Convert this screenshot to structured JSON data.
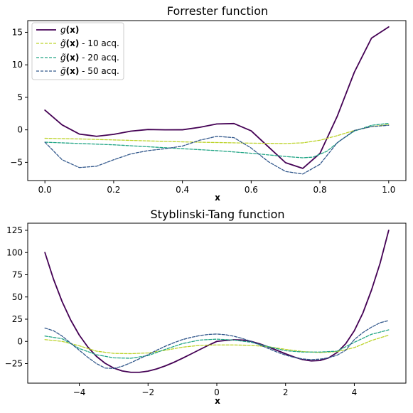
{
  "chart_data": [
    {
      "type": "line",
      "title": "Forrester function",
      "xlabel": "x",
      "ylabel": "",
      "xlim": [
        -0.05,
        1.05
      ],
      "ylim": [
        -7.8,
        16.8
      ],
      "xticks": [
        0.0,
        0.2,
        0.4,
        0.6,
        0.8,
        1.0
      ],
      "xtick_labels": [
        "0.0",
        "0.2",
        "0.4",
        "0.6",
        "0.8",
        "1.0"
      ],
      "yticks": [
        -5,
        0,
        5,
        10,
        15
      ],
      "ytick_labels": [
        "−5",
        "0",
        "5",
        "10",
        "15"
      ],
      "legend": {
        "location": "upper-left",
        "entries": [
          {
            "label_main": "g",
            "label_arg": "(x)",
            "label_suffix": ""
          },
          {
            "label_main": "g̃",
            "label_arg": "(x)",
            "label_suffix": " - 10 acq."
          },
          {
            "label_main": "g̃",
            "label_arg": "(x)",
            "label_suffix": " - 20 acq."
          },
          {
            "label_main": "g̃",
            "label_arg": "(x)",
            "label_suffix": " - 50 acq."
          }
        ]
      },
      "series": [
        {
          "color": "#440154",
          "dashed": false,
          "x": [
            0.0,
            0.05,
            0.1,
            0.15,
            0.2,
            0.25,
            0.3,
            0.35,
            0.4,
            0.45,
            0.5,
            0.55,
            0.6,
            0.65,
            0.7,
            0.75,
            0.8,
            0.85,
            0.9,
            0.95,
            1.0
          ],
          "y": [
            3.03,
            0.76,
            -0.65,
            -0.99,
            -0.69,
            -0.2,
            0.05,
            0.0,
            0.01,
            0.39,
            0.91,
            0.97,
            -0.15,
            -2.61,
            -5.05,
            -5.93,
            -3.63,
            2.05,
            8.86,
            14.11,
            15.83
          ]
        },
        {
          "color": "#bcd32a",
          "dashed": true,
          "x": [
            0.0,
            0.1,
            0.2,
            0.3,
            0.4,
            0.5,
            0.6,
            0.7,
            0.75,
            0.8,
            0.85,
            0.9,
            0.95,
            1.0
          ],
          "y": [
            -1.3,
            -1.4,
            -1.55,
            -1.7,
            -1.85,
            -1.95,
            -2.05,
            -2.1,
            -2.0,
            -1.6,
            -0.9,
            -0.1,
            0.5,
            0.8
          ]
        },
        {
          "color": "#21a585",
          "dashed": true,
          "x": [
            0.0,
            0.1,
            0.2,
            0.3,
            0.4,
            0.5,
            0.6,
            0.7,
            0.75,
            0.78,
            0.82,
            0.86,
            0.9,
            0.95,
            1.0
          ],
          "y": [
            -1.9,
            -2.1,
            -2.3,
            -2.6,
            -2.9,
            -3.2,
            -3.6,
            -4.1,
            -4.3,
            -4.2,
            -3.3,
            -1.6,
            -0.2,
            0.7,
            1.0
          ]
        },
        {
          "color": "#31578b",
          "dashed": true,
          "x": [
            0.0,
            0.05,
            0.1,
            0.15,
            0.2,
            0.25,
            0.3,
            0.35,
            0.4,
            0.45,
            0.5,
            0.55,
            0.6,
            0.65,
            0.7,
            0.75,
            0.8,
            0.85,
            0.9,
            0.95,
            1.0
          ],
          "y": [
            -1.9,
            -4.6,
            -5.8,
            -5.6,
            -4.6,
            -3.7,
            -3.2,
            -2.9,
            -2.5,
            -1.6,
            -1.0,
            -1.2,
            -2.8,
            -4.9,
            -6.4,
            -6.8,
            -5.3,
            -2.0,
            -0.1,
            0.5,
            0.7
          ]
        }
      ]
    },
    {
      "type": "line",
      "title": "Styblinski-Tang function",
      "xlabel": "x",
      "ylabel": "",
      "xlim": [
        -5.5,
        5.5
      ],
      "ylim": [
        -47,
        133
      ],
      "xticks": [
        -4,
        -2,
        0,
        2,
        4
      ],
      "xtick_labels": [
        "−4",
        "−2",
        "0",
        "2",
        "4"
      ],
      "yticks": [
        -25,
        0,
        25,
        50,
        75,
        100,
        125
      ],
      "ytick_labels": [
        "−25",
        "0",
        "25",
        "50",
        "75",
        "100",
        "125"
      ],
      "legend": null,
      "series": [
        {
          "color": "#440154",
          "dashed": false,
          "x": [
            -5.0,
            -4.75,
            -4.5,
            -4.25,
            -4.0,
            -3.75,
            -3.5,
            -3.25,
            -3.0,
            -2.75,
            -2.5,
            -2.25,
            -2.0,
            -1.75,
            -1.5,
            -1.25,
            -1.0,
            -0.75,
            -0.5,
            -0.25,
            0.0,
            0.25,
            0.5,
            0.75,
            1.0,
            1.25,
            1.5,
            1.75,
            2.0,
            2.25,
            2.5,
            2.75,
            3.0,
            3.25,
            3.5,
            3.75,
            4.0,
            4.25,
            4.5,
            4.75,
            5.0
          ],
          "y": [
            100.0,
            70.0,
            44.8,
            24.0,
            7.0,
            -6.4,
            -16.9,
            -24.6,
            -30.0,
            -33.3,
            -34.8,
            -34.8,
            -33.5,
            -31.0,
            -27.6,
            -23.6,
            -19.0,
            -14.2,
            -9.3,
            -4.5,
            0.0,
            1.0,
            1.8,
            1.5,
            0.0,
            -2.8,
            -6.3,
            -10.1,
            -14.0,
            -17.6,
            -20.5,
            -22.0,
            -21.5,
            -18.6,
            -12.5,
            -2.6,
            12.0,
            32.0,
            57.8,
            88.0,
            125.0
          ]
        },
        {
          "color": "#bcd32a",
          "dashed": true,
          "x": [
            -5.0,
            -4.5,
            -4.0,
            -3.5,
            -3.0,
            -2.5,
            -2.0,
            -1.5,
            -1.0,
            -0.5,
            0.0,
            0.5,
            1.0,
            1.5,
            2.0,
            2.5,
            3.0,
            3.5,
            4.0,
            4.5,
            5.0
          ],
          "y": [
            2.0,
            0.0,
            -5.0,
            -11.0,
            -13.5,
            -13.8,
            -13.0,
            -10.0,
            -6.5,
            -4.5,
            -4.0,
            -4.0,
            -4.5,
            -6.0,
            -9.0,
            -11.5,
            -12.5,
            -11.5,
            -7.0,
            1.0,
            7.0
          ]
        },
        {
          "color": "#21a585",
          "dashed": true,
          "x": [
            -5.0,
            -4.5,
            -4.0,
            -3.5,
            -3.0,
            -2.5,
            -2.0,
            -1.5,
            -1.0,
            -0.5,
            0.0,
            0.5,
            1.0,
            1.5,
            2.0,
            2.5,
            3.0,
            3.5,
            4.0,
            4.5,
            5.0
          ],
          "y": [
            6.0,
            3.0,
            -8.0,
            -15.0,
            -18.5,
            -19.0,
            -16.0,
            -9.0,
            -2.5,
            1.5,
            2.5,
            1.5,
            -1.0,
            -6.0,
            -10.5,
            -12.0,
            -12.0,
            -11.0,
            -1.0,
            8.0,
            13.0
          ]
        },
        {
          "color": "#31578b",
          "dashed": true,
          "x": [
            -5.0,
            -4.75,
            -4.5,
            -4.25,
            -4.0,
            -3.75,
            -3.5,
            -3.25,
            -3.0,
            -2.75,
            -2.5,
            -2.25,
            -2.0,
            -1.75,
            -1.5,
            -1.25,
            -1.0,
            -0.75,
            -0.5,
            -0.25,
            0.0,
            0.25,
            0.5,
            0.75,
            1.0,
            1.25,
            1.5,
            1.75,
            2.0,
            2.25,
            2.5,
            2.75,
            3.0,
            3.25,
            3.5,
            3.75,
            4.0,
            4.25,
            4.5,
            4.75,
            5.0
          ],
          "y": [
            15.0,
            12.0,
            6.0,
            -2.0,
            -10.0,
            -18.0,
            -25.0,
            -30.0,
            -30.5,
            -28.0,
            -24.0,
            -19.5,
            -15.0,
            -10.0,
            -5.5,
            -1.5,
            2.0,
            4.5,
            6.5,
            7.8,
            8.3,
            7.5,
            5.8,
            3.2,
            0.0,
            -4.0,
            -8.0,
            -12.0,
            -15.5,
            -18.0,
            -19.8,
            -20.5,
            -20.0,
            -18.5,
            -15.5,
            -10.0,
            2.0,
            10.0,
            16.0,
            21.0,
            23.5
          ]
        }
      ]
    }
  ]
}
